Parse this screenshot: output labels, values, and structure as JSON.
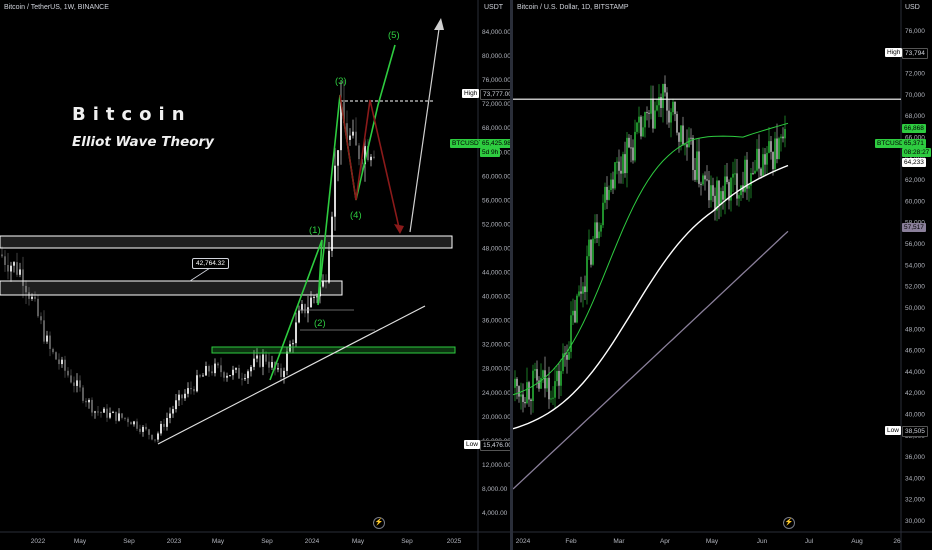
{
  "left_chart": {
    "title": "Bitcoin / TetherUS, 1W, BINANCE",
    "currency": "USDT",
    "heading": "Bitcoin",
    "subheading": "Elliot Wave Theory",
    "callout": "42,764.32",
    "wave_labels": [
      "(1)",
      "(2)",
      "(3)",
      "(4)",
      "(5)"
    ],
    "y_ticks": [
      "84,000.00",
      "80,000.00",
      "76,000.00",
      "72,000.00",
      "68,000.00",
      "64,000.00",
      "60,000.00",
      "56,000.00",
      "52,000.00",
      "48,000.00",
      "44,000.00",
      "40,000.00",
      "36,000.00",
      "32,000.00",
      "28,000.00",
      "24,000.00",
      "20,000.00",
      "16,000.00",
      "12,000.00",
      "8,000.00",
      "4,000.00"
    ],
    "x_ticks": [
      "2022",
      "May",
      "Sep",
      "2023",
      "May",
      "Sep",
      "2024",
      "May",
      "Sep",
      "2025"
    ],
    "high_label": "High",
    "high_value": "73,777.00",
    "price_label": "BTCUSDT",
    "price_value": "65,425.98",
    "price_countdown": "5d 9h",
    "low_label": "Low",
    "low_value": "15,476.00",
    "colors": {
      "up": "#26a69a",
      "wave": "#2ecc40",
      "projection": "#8b1a1a",
      "alt": "#d0d0d0"
    }
  },
  "right_chart": {
    "title": "Bitcoin / U.S. Dollar, 1D, BITSTAMP",
    "currency": "USD",
    "y_ticks": [
      "76,000",
      "74,000",
      "72,000",
      "70,000",
      "68,000",
      "66,000",
      "64,000",
      "62,000",
      "60,000",
      "58,000",
      "56,000",
      "54,000",
      "52,000",
      "50,000",
      "48,000",
      "46,000",
      "44,000",
      "42,000",
      "40,000",
      "38,000",
      "36,000",
      "34,000",
      "32,000",
      "30,000"
    ],
    "x_ticks": [
      "2024",
      "Feb",
      "Mar",
      "Apr",
      "May",
      "Jun",
      "Jul",
      "Aug",
      "26"
    ],
    "high_label": "High",
    "high_value": "73,794",
    "low_label": "Low",
    "low_value": "38,505",
    "price_label": "BTCUSD",
    "price_value": "65,371",
    "price_countdown": "08:28:27",
    "ma_labels": [
      "66,868",
      "64,233",
      "57,517"
    ],
    "colors": {
      "up": "#2ecc40",
      "ma_fast": "#2ecc40",
      "ma_mid": "#ffffff",
      "ma_slow": "#8a7f9a"
    }
  },
  "chart_data": [
    {
      "type": "line",
      "title": "Bitcoin / TetherUS, 1W, BINANCE",
      "xlabel": "",
      "ylabel": "",
      "ylim": [
        0,
        88000
      ],
      "x": [
        "2022-01",
        "2022-03",
        "2022-05",
        "2022-07",
        "2022-09",
        "2022-11",
        "2023-01",
        "2023-03",
        "2023-05",
        "2023-07",
        "2023-09",
        "2023-11",
        "2024-01",
        "2024-03",
        "2024-04",
        "2024-05"
      ],
      "series": [
        {
          "values": [
            47000,
            44000,
            31000,
            21000,
            19500,
            16500,
            22000,
            28000,
            27000,
            30000,
            26500,
            37000,
            42500,
            70000,
            64000,
            65426
          ]
        }
      ]
    },
    {
      "type": "line",
      "title": "Bitcoin / U.S. Dollar, 1D, BITSTAMP",
      "xlabel": "",
      "ylabel": "",
      "ylim": [
        30000,
        77000
      ],
      "x": [
        "2024-01",
        "2024-02",
        "2024-03",
        "2024-04",
        "2024-05",
        "2024-06"
      ],
      "series": [
        {
          "values": [
            42500,
            43000,
            62000,
            69500,
            60000,
            65371
          ]
        }
      ]
    }
  ]
}
